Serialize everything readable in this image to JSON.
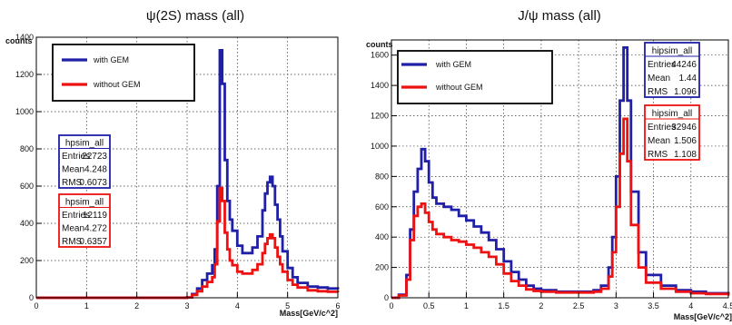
{
  "chart_data": [
    {
      "type": "line",
      "title": "ψ(2S) mass (all)",
      "xlabel": "Mass[GeV/c^2]",
      "ylabel": "counts",
      "xlim": [
        0,
        6
      ],
      "ylim": [
        0,
        1400
      ],
      "xticks": [
        "0",
        "1",
        "2",
        "3",
        "4",
        "5",
        "6"
      ],
      "yticks": [
        "0",
        "200",
        "400",
        "600",
        "800",
        "1000",
        "1200",
        "1400"
      ],
      "grid": true,
      "legend": {
        "position": "top-left",
        "entries": [
          "with GEM",
          "without GEM"
        ]
      },
      "series": [
        {
          "name": "with GEM",
          "color": "#1f1fa8",
          "x": [
            0,
            0.5,
            1,
            1.5,
            2,
            2.5,
            3,
            3.1,
            3.2,
            3.3,
            3.4,
            3.5,
            3.55,
            3.6,
            3.65,
            3.7,
            3.75,
            3.8,
            3.85,
            3.9,
            4,
            4.1,
            4.2,
            4.3,
            4.4,
            4.5,
            4.55,
            4.6,
            4.65,
            4.7,
            4.75,
            4.8,
            4.85,
            4.9,
            5,
            5.1,
            5.2,
            5.4,
            5.6,
            5.8,
            6
          ],
          "values": [
            0,
            0,
            0,
            0,
            0,
            0,
            2,
            20,
            50,
            95,
            130,
            175,
            260,
            600,
            1330,
            1150,
            740,
            520,
            420,
            360,
            280,
            240,
            240,
            270,
            330,
            470,
            560,
            620,
            650,
            600,
            500,
            420,
            330,
            250,
            160,
            110,
            80,
            60,
            55,
            50,
            45
          ]
        },
        {
          "name": "without GEM",
          "color": "#ee1111",
          "x": [
            0,
            0.5,
            1,
            1.5,
            2,
            2.5,
            3,
            3.1,
            3.2,
            3.3,
            3.4,
            3.5,
            3.55,
            3.6,
            3.65,
            3.7,
            3.75,
            3.8,
            3.85,
            3.9,
            4,
            4.1,
            4.2,
            4.3,
            4.4,
            4.5,
            4.55,
            4.6,
            4.65,
            4.7,
            4.75,
            4.8,
            4.85,
            4.9,
            5,
            5.1,
            5.2,
            5.4,
            5.6,
            5.8,
            6
          ],
          "values": [
            0,
            0,
            0,
            0,
            0,
            0,
            2,
            15,
            35,
            60,
            85,
            110,
            180,
            410,
            590,
            520,
            350,
            260,
            200,
            175,
            140,
            130,
            130,
            150,
            180,
            240,
            290,
            320,
            340,
            320,
            270,
            220,
            180,
            140,
            95,
            70,
            55,
            40,
            35,
            32,
            30
          ]
        }
      ],
      "stats_boxes": [
        {
          "name": "hpsim_all",
          "color": "#1f1fa8",
          "rows": [
            [
              "Entries",
              "22723"
            ],
            [
              "Mean",
              "4.248"
            ],
            [
              "RMS",
              "0.6073"
            ]
          ]
        },
        {
          "name": "hpsim_all",
          "color": "#ee1111",
          "rows": [
            [
              "Entries",
              "12119"
            ],
            [
              "Mean",
              "4.272"
            ],
            [
              "RMS",
              "0.6357"
            ]
          ]
        }
      ]
    },
    {
      "type": "line",
      "title": "J/ψ mass (all)",
      "xlabel": "Mass[GeV/c^2]",
      "ylabel": "counts",
      "xlim": [
        0,
        4.5
      ],
      "ylim": [
        0,
        1700
      ],
      "xticks": [
        "0",
        "0.5",
        "1",
        "1.5",
        "2",
        "2.5",
        "3",
        "3.5",
        "4",
        "4.5"
      ],
      "yticks": [
        "0",
        "200",
        "400",
        "600",
        "800",
        "1000",
        "1200",
        "1400",
        "1600"
      ],
      "grid": true,
      "legend": {
        "position": "top-left",
        "entries": [
          "with GEM",
          "without GEM"
        ]
      },
      "series": [
        {
          "name": "with GEM",
          "color": "#1f1fa8",
          "x": [
            0,
            0.1,
            0.2,
            0.25,
            0.3,
            0.35,
            0.4,
            0.45,
            0.5,
            0.55,
            0.6,
            0.7,
            0.8,
            0.9,
            1,
            1.1,
            1.2,
            1.3,
            1.4,
            1.5,
            1.6,
            1.7,
            1.8,
            1.9,
            2,
            2.2,
            2.4,
            2.6,
            2.7,
            2.8,
            2.9,
            2.95,
            3,
            3.05,
            3.1,
            3.15,
            3.2,
            3.3,
            3.4,
            3.6,
            3.8,
            4,
            4.2,
            4.5
          ],
          "values": [
            0,
            20,
            150,
            450,
            700,
            850,
            980,
            900,
            760,
            660,
            620,
            600,
            580,
            540,
            510,
            470,
            430,
            380,
            320,
            240,
            170,
            120,
            80,
            60,
            50,
            40,
            40,
            40,
            50,
            80,
            200,
            400,
            800,
            1300,
            1650,
            1300,
            700,
            300,
            150,
            80,
            50,
            40,
            30,
            20
          ]
        },
        {
          "name": "without GEM",
          "color": "#ee1111",
          "x": [
            0,
            0.1,
            0.2,
            0.25,
            0.3,
            0.35,
            0.4,
            0.45,
            0.5,
            0.55,
            0.6,
            0.7,
            0.8,
            0.9,
            1,
            1.1,
            1.2,
            1.3,
            1.4,
            1.5,
            1.6,
            1.7,
            1.8,
            1.9,
            2,
            2.2,
            2.4,
            2.6,
            2.7,
            2.8,
            2.9,
            2.95,
            3,
            3.05,
            3.1,
            3.15,
            3.2,
            3.3,
            3.4,
            3.6,
            3.8,
            4,
            4.2,
            4.5
          ],
          "values": [
            0,
            15,
            120,
            380,
            540,
            600,
            620,
            560,
            500,
            450,
            420,
            400,
            380,
            370,
            350,
            330,
            300,
            270,
            220,
            160,
            110,
            80,
            55,
            45,
            40,
            35,
            35,
            35,
            40,
            60,
            140,
            300,
            600,
            950,
            1180,
            900,
            480,
            200,
            100,
            60,
            40,
            30,
            25,
            15
          ]
        }
      ],
      "stats_boxes": [
        {
          "name": "hipsim_all",
          "color": "#1f1fa8",
          "rows": [
            [
              "Entries",
              "44246"
            ],
            [
              "Mean",
              "1.44"
            ],
            [
              "RMS",
              "1.096"
            ]
          ]
        },
        {
          "name": "hipsim_all",
          "color": "#ee1111",
          "rows": [
            [
              "Entries",
              "32946"
            ],
            [
              "Mean",
              "1.506"
            ],
            [
              "RMS",
              "1.108"
            ]
          ]
        }
      ]
    }
  ]
}
